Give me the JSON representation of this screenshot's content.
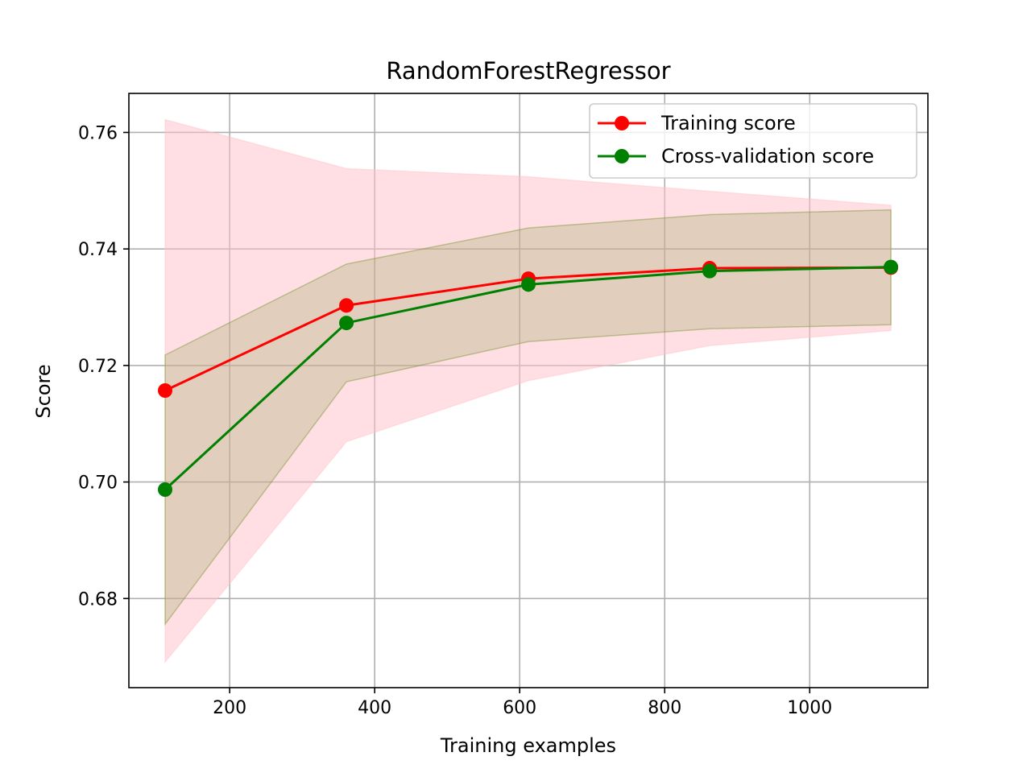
{
  "chart_data": {
    "type": "line",
    "title": "RandomForestRegressor",
    "xlabel": "Training examples",
    "ylabel": "Score",
    "xlim": [
      61,
      1163
    ],
    "ylim": [
      0.6647,
      0.7667
    ],
    "xticks": [
      200,
      400,
      600,
      800,
      1000
    ],
    "xtick_labels": [
      "200",
      "400",
      "600",
      "800",
      "1000"
    ],
    "yticks": [
      0.68,
      0.7,
      0.72,
      0.74,
      0.76
    ],
    "ytick_labels": [
      "0.68",
      "0.70",
      "0.72",
      "0.74",
      "0.76"
    ],
    "grid": true,
    "legend_position": "top-right",
    "x": [
      111,
      361,
      612,
      862,
      1112
    ],
    "series": [
      {
        "name": "Training score",
        "color": "#ff0000",
        "band_color": "#ffc0c8",
        "values": [
          0.7157,
          0.7303,
          0.7349,
          0.7367,
          0.7368
        ],
        "band_lower": [
          0.6691,
          0.7069,
          0.7174,
          0.7234,
          0.726
        ],
        "band_upper": [
          0.7622,
          0.7538,
          0.7524,
          0.7499,
          0.7475
        ]
      },
      {
        "name": "Cross-validation score",
        "color": "#008000",
        "band_color": "#6b8e23",
        "values": [
          0.6987,
          0.7273,
          0.7339,
          0.7362,
          0.7369
        ],
        "band_lower": [
          0.6756,
          0.7172,
          0.7241,
          0.7263,
          0.727
        ],
        "band_upper": [
          0.7218,
          0.7374,
          0.7436,
          0.7459,
          0.7467
        ]
      }
    ]
  }
}
